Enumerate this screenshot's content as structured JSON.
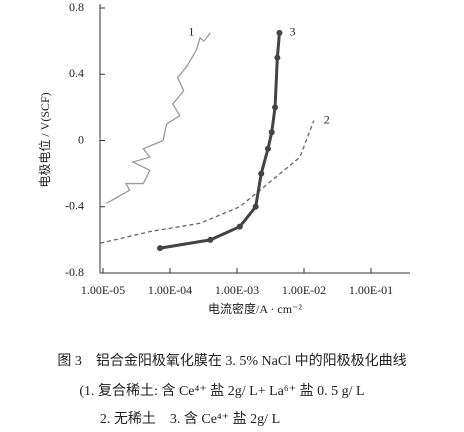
{
  "chart_data": {
    "type": "line",
    "ylabel": "电极电位 / V(SCF)",
    "xlabel": "电流密度/A · cm⁻²",
    "xscale": "log",
    "xlim": [
      1e-05,
      0.1
    ],
    "xticks": [
      {
        "value": 1e-05,
        "label": "1.00E-05"
      },
      {
        "value": 0.0001,
        "label": "1.00E-04"
      },
      {
        "value": 0.001,
        "label": "1.00E-03"
      },
      {
        "value": 0.01,
        "label": "1.00E-02"
      },
      {
        "value": 0.1,
        "label": "1.00E-01"
      }
    ],
    "ylim": [
      -0.8,
      0.8
    ],
    "yticks": [
      0.8,
      0.4,
      0,
      -0.4,
      -0.8
    ],
    "series": [
      {
        "name": "1",
        "color": "#9a9a9a",
        "style": "solid",
        "x": [
          1.12e-05,
          2.5e-05,
          2.2e-05,
          4e-05,
          5e-05,
          2.8e-05,
          5e-05,
          4e-05,
          7.9e-05,
          8.9e-05,
          0.00014,
          0.00011,
          0.00016,
          0.00013,
          0.00018,
          0.00025,
          0.00028,
          0.00032,
          0.0004
        ],
        "values": [
          -0.38,
          -0.3,
          -0.26,
          -0.26,
          -0.18,
          -0.13,
          -0.1,
          -0.05,
          0.0,
          0.1,
          0.15,
          0.22,
          0.3,
          0.38,
          0.45,
          0.55,
          0.62,
          0.6,
          0.65
        ]
      },
      {
        "name": "2",
        "color": "#666666",
        "style": "dashed",
        "x": [
          9.1e-06,
          5e-05,
          0.00028,
          0.0011,
          0.0022,
          0.0044,
          0.0087,
          0.014
        ],
        "values": [
          -0.62,
          -0.55,
          -0.5,
          -0.4,
          -0.3,
          -0.2,
          -0.1,
          0.12
        ]
      },
      {
        "name": "3",
        "color": "#444444",
        "style": "markers",
        "x": [
          7.1e-05,
          0.0004,
          0.0011,
          0.0019,
          0.0023,
          0.0029,
          0.0033,
          0.0037,
          0.004,
          0.0043
        ],
        "values": [
          -0.65,
          -0.6,
          -0.52,
          -0.4,
          -0.2,
          -0.05,
          0.05,
          0.2,
          0.5,
          0.65
        ]
      }
    ],
    "caption": [
      "图 3　铝合金阳极氧化膜在 3. 5% NaCl 中的阳极极化曲线",
      "(1. 复合稀土: 含 Ce⁴⁺ 盐 2g/ L+ La⁶⁺ 盐 0. 5 g/ L",
      "2. 无稀土　3. 含 Ce⁴⁺ 盐 2g/ L"
    ]
  }
}
